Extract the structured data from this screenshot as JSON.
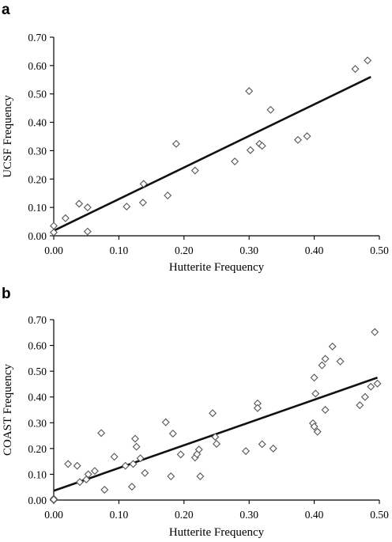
{
  "colors": {
    "marker_stroke": "#555555",
    "fit_line": "#111111",
    "axes": "#000000"
  },
  "chart_data": [
    {
      "panel": "a",
      "type": "scatter",
      "marker": "diamond",
      "xlabel": "Hutterite Frequency",
      "ylabel": "UCSF Frequency",
      "xlim": [
        0,
        0.5
      ],
      "ylim": [
        0,
        0.7
      ],
      "xticks": [
        "0.00",
        "0.10",
        "0.20",
        "0.30",
        "0.40",
        "0.50"
      ],
      "yticks": [
        "0.00",
        "0.10",
        "0.20",
        "0.30",
        "0.40",
        "0.50",
        "0.60",
        "0.70"
      ],
      "grid": false,
      "trendline": {
        "x": [
          0,
          0.487
        ],
        "y": [
          0.018,
          0.56
        ]
      },
      "points": [
        [
          0.0,
          0.012
        ],
        [
          0.0,
          0.035
        ],
        [
          0.018,
          0.062
        ],
        [
          0.039,
          0.113
        ],
        [
          0.052,
          0.1
        ],
        [
          0.052,
          0.015
        ],
        [
          0.112,
          0.103
        ],
        [
          0.138,
          0.183
        ],
        [
          0.137,
          0.117
        ],
        [
          0.175,
          0.142
        ],
        [
          0.188,
          0.324
        ],
        [
          0.217,
          0.23
        ],
        [
          0.278,
          0.262
        ],
        [
          0.3,
          0.51
        ],
        [
          0.302,
          0.302
        ],
        [
          0.316,
          0.324
        ],
        [
          0.32,
          0.317
        ],
        [
          0.333,
          0.444
        ],
        [
          0.375,
          0.338
        ],
        [
          0.389,
          0.351
        ],
        [
          0.463,
          0.588
        ],
        [
          0.482,
          0.618
        ]
      ]
    },
    {
      "panel": "b",
      "type": "scatter",
      "marker": "diamond",
      "xlabel": "Hutterite Frequency",
      "ylabel": "COAST Frequency",
      "xlim": [
        0,
        0.5
      ],
      "ylim": [
        0,
        0.7
      ],
      "xticks": [
        "0.00",
        "0.10",
        "0.20",
        "0.30",
        "0.40",
        "0.50"
      ],
      "yticks": [
        "0.00",
        "0.10",
        "0.20",
        "0.30",
        "0.40",
        "0.50",
        "0.60",
        "0.70"
      ],
      "grid": false,
      "trendline": {
        "x": [
          0,
          0.497
        ],
        "y": [
          0.036,
          0.475
        ]
      },
      "points": [
        [
          0.0,
          0.0
        ],
        [
          0.0,
          0.005
        ],
        [
          0.0,
          0.002
        ],
        [
          0.022,
          0.14
        ],
        [
          0.036,
          0.133
        ],
        [
          0.04,
          0.07
        ],
        [
          0.05,
          0.08
        ],
        [
          0.053,
          0.1
        ],
        [
          0.063,
          0.113
        ],
        [
          0.073,
          0.26
        ],
        [
          0.078,
          0.04
        ],
        [
          0.093,
          0.168
        ],
        [
          0.11,
          0.133
        ],
        [
          0.12,
          0.052
        ],
        [
          0.122,
          0.14
        ],
        [
          0.125,
          0.238
        ],
        [
          0.127,
          0.207
        ],
        [
          0.133,
          0.162
        ],
        [
          0.14,
          0.105
        ],
        [
          0.172,
          0.302
        ],
        [
          0.18,
          0.092
        ],
        [
          0.183,
          0.258
        ],
        [
          0.195,
          0.177
        ],
        [
          0.217,
          0.165
        ],
        [
          0.22,
          0.178
        ],
        [
          0.225,
          0.092
        ],
        [
          0.223,
          0.196
        ],
        [
          0.244,
          0.337
        ],
        [
          0.248,
          0.245
        ],
        [
          0.25,
          0.218
        ],
        [
          0.295,
          0.19
        ],
        [
          0.313,
          0.375
        ],
        [
          0.313,
          0.357
        ],
        [
          0.32,
          0.217
        ],
        [
          0.337,
          0.2
        ],
        [
          0.398,
          0.298
        ],
        [
          0.4,
          0.285
        ],
        [
          0.4,
          0.475
        ],
        [
          0.402,
          0.413
        ],
        [
          0.405,
          0.265
        ],
        [
          0.412,
          0.523
        ],
        [
          0.417,
          0.548
        ],
        [
          0.417,
          0.35
        ],
        [
          0.428,
          0.596
        ],
        [
          0.44,
          0.538
        ],
        [
          0.47,
          0.368
        ],
        [
          0.478,
          0.4
        ],
        [
          0.487,
          0.44
        ],
        [
          0.493,
          0.652
        ],
        [
          0.497,
          0.452
        ]
      ]
    }
  ]
}
